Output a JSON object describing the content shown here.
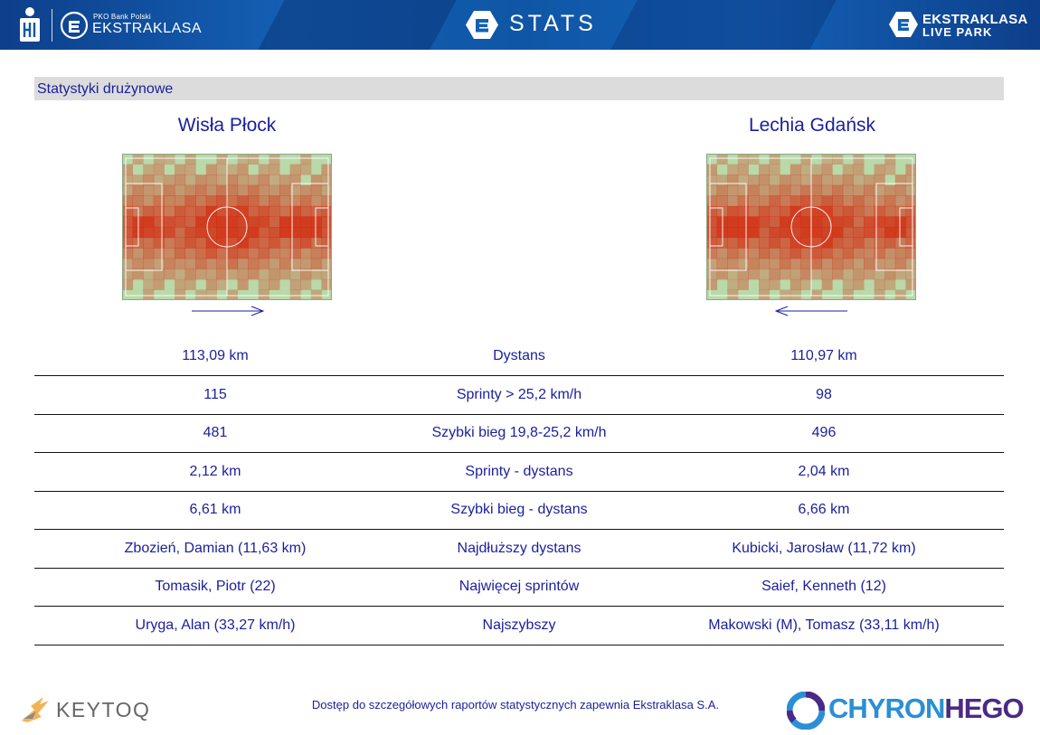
{
  "header": {
    "bank_label": "PKO Bank Polski",
    "league_label": "EKSTRAKLASA",
    "stats_label": "STATS",
    "liveparks_line1": "EKSTRAKLASA",
    "liveparks_line2": "LIVE PARK"
  },
  "section": {
    "title": "Statystyki drużynowe"
  },
  "teams": {
    "home": {
      "name": "Wisła Płock",
      "direction": "right"
    },
    "away": {
      "name": "Lechia Gdańsk",
      "direction": "left"
    }
  },
  "colors": {
    "header_blue": "#1460b4",
    "text_blue": "#1a1f9c",
    "pitch_green": "#b9d9a8",
    "heat_red": "#d42a10"
  },
  "stats": [
    {
      "label": "Dystans",
      "home": "113,09 km",
      "away": "110,97 km"
    },
    {
      "label": "Sprinty > 25,2 km/h",
      "home": "115",
      "away": "98"
    },
    {
      "label": "Szybki bieg 19,8-25,2 km/h",
      "home": "481",
      "away": "496"
    },
    {
      "label": "Sprinty - dystans",
      "home": "2,12 km",
      "away": "2,04 km"
    },
    {
      "label": "Szybki bieg - dystans",
      "home": "6,61 km",
      "away": "6,66 km"
    },
    {
      "label": "Najdłuższy dystans",
      "home": "Zbozień, Damian (11,63 km)",
      "away": "Kubicki, Jarosław (11,72 km)"
    },
    {
      "label": "Najwięcej sprintów",
      "home": "Tomasik, Piotr (22)",
      "away": "Saief, Kenneth (12)"
    },
    {
      "label": "Najszybszy",
      "home": "Uryga, Alan (33,27 km/h)",
      "away": "Makowski (M), Tomasz (33,11 km/h)"
    }
  ],
  "footer": {
    "keytoq_label": "KEYTOQ",
    "note": "Dostęp do szczegółowych raportów statystycznych zapewnia Ekstraklasa S.A.",
    "chyron_part1": "CHYRON",
    "chyron_part2": "HEGO"
  }
}
